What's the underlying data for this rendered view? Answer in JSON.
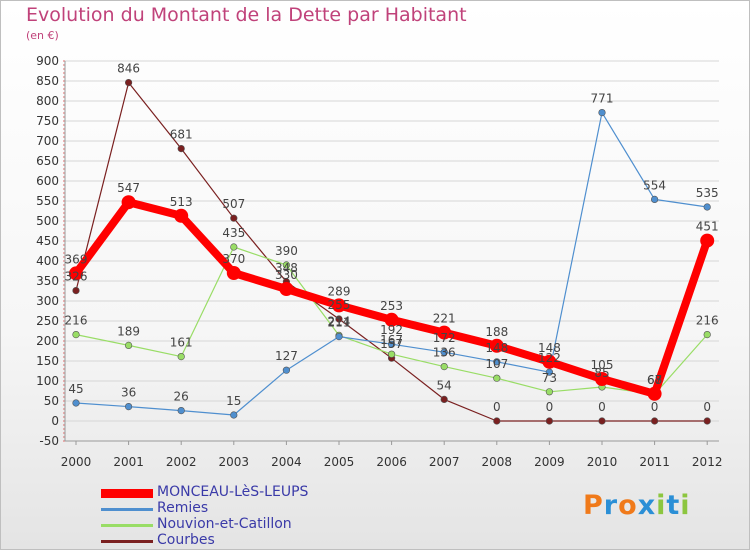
{
  "chart_data": {
    "type": "line",
    "title": "Evolution du Montant de la Dette par Habitant",
    "subtitle": "(en €)",
    "categories": [
      "2000",
      "2001",
      "2002",
      "2003",
      "2004",
      "2005",
      "2006",
      "2007",
      "2008",
      "2009",
      "2010",
      "2011",
      "2012"
    ],
    "ylim": [
      -50,
      900
    ],
    "yticks": [
      -50,
      0,
      50,
      100,
      150,
      200,
      250,
      300,
      350,
      400,
      450,
      500,
      550,
      600,
      650,
      700,
      750,
      800,
      850,
      900
    ],
    "grid": "horizontal",
    "legend_position": "bottom-left",
    "series": [
      {
        "name": "MONCEAU-LèS-LEUPS",
        "color": "#ff0000",
        "values": [
          369,
          547,
          513,
          370,
          330,
          289,
          253,
          221,
          188,
          148,
          105,
          68,
          451
        ],
        "labels": [
          "369",
          "547",
          "513",
          "370",
          "330",
          "289",
          "253",
          "221",
          "188",
          "148",
          "105",
          "68",
          "451"
        ]
      },
      {
        "name": "Remies",
        "color": "#4f8fcf",
        "values": [
          45,
          36,
          26,
          15,
          127,
          211,
          192,
          172,
          148,
          122,
          771,
          554,
          535
        ],
        "labels": [
          "45",
          "36",
          "26",
          "15",
          "127",
          "211",
          "192",
          "172",
          "148",
          "122",
          "771",
          "554",
          "535"
        ]
      },
      {
        "name": "Nouvion-et-Catillon",
        "color": "#99dd66",
        "values": [
          216,
          189,
          161,
          435,
          390,
          214,
          167,
          136,
          107,
          73,
          85,
          67,
          216
        ],
        "labels": [
          "216",
          "189",
          "161",
          "435",
          "390",
          "214",
          "167",
          "136",
          "107",
          "73",
          "85",
          "67",
          "216"
        ]
      },
      {
        "name": "Courbes",
        "color": "#7a2020",
        "values": [
          326,
          846,
          681,
          507,
          348,
          255,
          157,
          54,
          0,
          0,
          0,
          0,
          0
        ],
        "labels": [
          "326",
          "846",
          "681",
          "507",
          "348",
          "255",
          "157",
          "54",
          "0",
          "0",
          "0",
          "0",
          "0"
        ]
      }
    ]
  },
  "logo": {
    "text": "Proxiti"
  }
}
